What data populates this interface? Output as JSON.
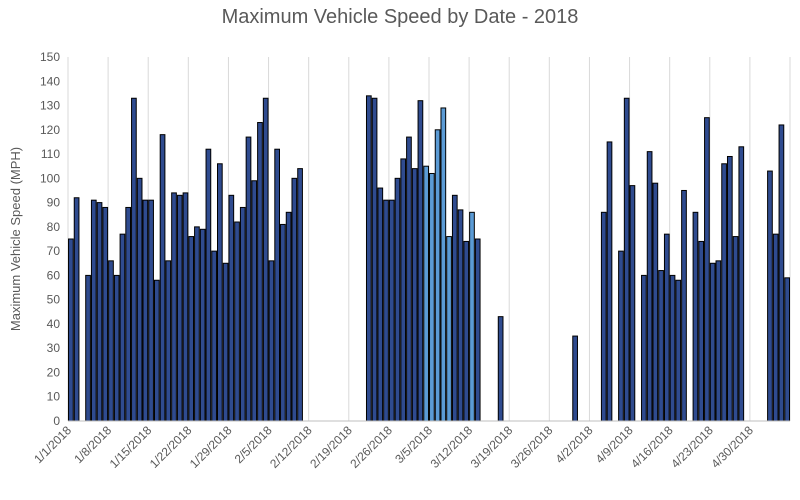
{
  "chart_data": {
    "type": "bar",
    "title": "Maximum Vehicle Speed by Date - 2018",
    "xlabel": "",
    "ylabel": "Maximum Vehicle Speed (MPH)",
    "ylim": [
      0,
      150
    ],
    "y_ticks": [
      0,
      10,
      20,
      30,
      40,
      50,
      60,
      70,
      80,
      90,
      100,
      110,
      120,
      130,
      140,
      150
    ],
    "x_tick_labels": [
      "1/1/2018",
      "1/8/2018",
      "1/15/2018",
      "1/22/2018",
      "1/29/2018",
      "2/5/2018",
      "2/12/2018",
      "2/19/2018",
      "2/26/2018",
      "3/5/2018",
      "3/12/2018",
      "3/19/2018",
      "3/26/2018",
      "4/2/2018",
      "4/9/2018",
      "4/16/2018",
      "4/23/2018",
      "4/30/2018"
    ],
    "start_date": "1/1/2018",
    "grid": "vertical",
    "colors": {
      "dark": "#2F4B8F",
      "light": "#5B9BD5",
      "border": "#000000",
      "grid": "#D9D9D9"
    },
    "values": [
      75,
      92,
      null,
      60,
      91,
      90,
      88,
      66,
      60,
      77,
      88,
      133,
      100,
      91,
      91,
      58,
      118,
      66,
      94,
      93,
      94,
      76,
      80,
      79,
      112,
      70,
      106,
      65,
      93,
      82,
      88,
      117,
      99,
      123,
      133,
      66,
      112,
      81,
      86,
      100,
      104,
      null,
      null,
      null,
      null,
      null,
      null,
      null,
      null,
      null,
      null,
      null,
      134,
      133,
      96,
      91,
      91,
      100,
      108,
      117,
      104,
      132,
      105,
      102,
      120,
      129,
      76,
      93,
      87,
      74,
      86,
      75,
      null,
      null,
      null,
      43,
      null,
      null,
      null,
      null,
      null,
      null,
      null,
      null,
      null,
      null,
      null,
      null,
      35,
      null,
      null,
      null,
      null,
      86,
      115,
      null,
      70,
      133,
      97,
      null,
      60,
      111,
      98,
      62,
      77,
      60,
      58,
      95,
      null,
      86,
      74,
      125,
      65,
      66,
      106,
      109,
      76,
      113,
      null,
      null,
      null,
      null,
      103,
      77,
      122,
      59
    ],
    "highlight": {
      "color": "light",
      "dates": [
        "3/4/2018",
        "3/5/2018",
        "3/6/2018",
        "3/7/2018",
        "3/8/2018",
        "3/12/2018",
        "3/29/2018",
        "4/3/2018"
      ]
    }
  }
}
